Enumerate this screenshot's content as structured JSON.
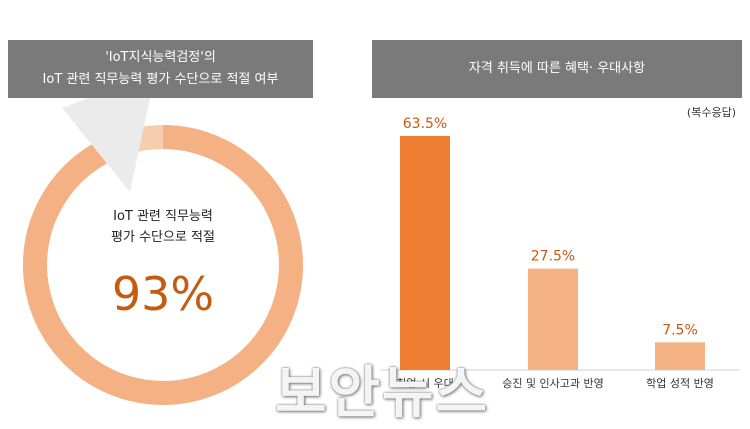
{
  "left_panel": {
    "banner_line1": "'IoT지식능력검정'의",
    "banner_line2": "IoT 관련 직무능력 평가 수단으로 적절 여부",
    "center_line1": "IoT 관련 직무능력",
    "center_line2": "평가 수단으로 적절",
    "center_value": "93%"
  },
  "right_panel": {
    "banner": "자격 취득에 따른 혜택· 우대사항",
    "note": "(복수응답)"
  },
  "watermark": "보안뉴스",
  "colors": {
    "banner": "#7a7a7a",
    "ring": "#f4b183",
    "bar_highlight": "#ed7d31",
    "bar_default": "#f4b183",
    "value_text": "#c55a11"
  },
  "chart_data": [
    {
      "type": "pie",
      "categories": [
        "IoT 관련 직무능력 평가 수단으로 적절"
      ],
      "values": [
        93
      ],
      "unit": "%"
    },
    {
      "type": "bar",
      "categories": [
        "취업 시 우대",
        "승진 및 인사고과 반영",
        "학업 성적 반영"
      ],
      "values": [
        63.5,
        27.5,
        7.5
      ],
      "value_labels": [
        "63.5%",
        "27.5%",
        "7.5%"
      ],
      "ylim": [
        0,
        70
      ],
      "grid": false
    }
  ]
}
